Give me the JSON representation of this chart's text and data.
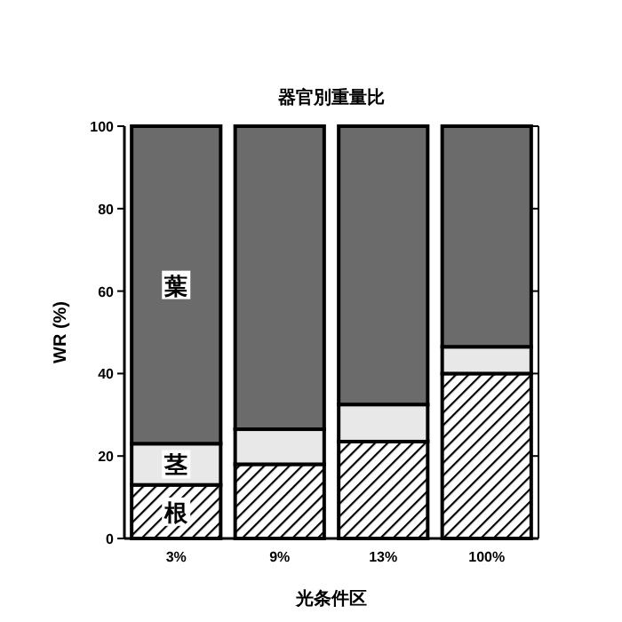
{
  "chart_data": {
    "type": "bar",
    "stacked": true,
    "title": "器官別重量比",
    "xlabel": "光条件区",
    "ylabel": "WR (%)",
    "categories": [
      "3%",
      "9%",
      "13%",
      "100%"
    ],
    "series": [
      {
        "name": "根",
        "color": "#000000",
        "values": [
          13,
          18,
          23.5,
          40
        ]
      },
      {
        "name": "茎",
        "color": "#e8e8e8",
        "values": [
          10,
          8.5,
          9,
          6.5
        ]
      },
      {
        "name": "葉",
        "color": "#6b6b6b",
        "values": [
          77,
          73.5,
          67.5,
          53.5
        ]
      }
    ],
    "ylim": [
      0,
      100
    ],
    "yticks": [
      0,
      20,
      40,
      60,
      80,
      100
    ],
    "grid": false
  }
}
